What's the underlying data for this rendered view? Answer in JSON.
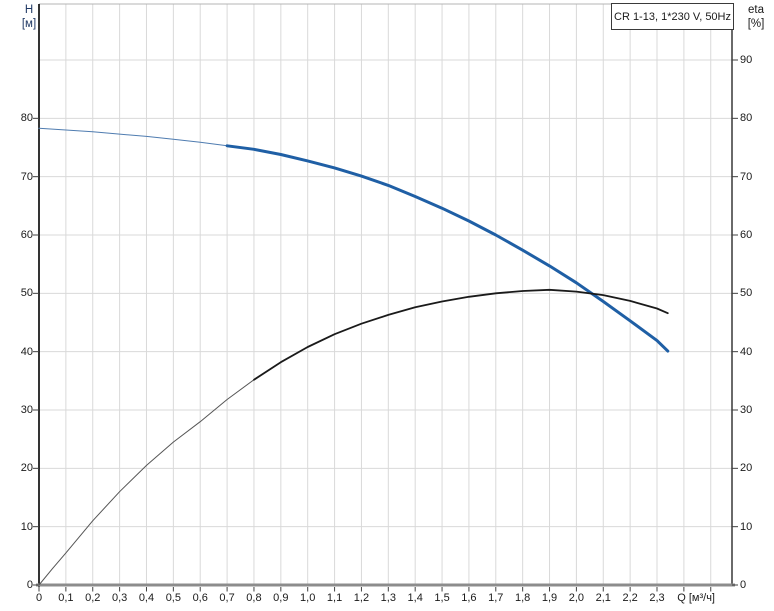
{
  "chart_data": {
    "type": "line",
    "title": "CR 1-13, 1*230 V, 50Hz",
    "grid": true,
    "grid_color": "#d9d9d9",
    "x_axis": {
      "label": "Q [м³/ч]",
      "min": 0,
      "max": 2.58,
      "grid_step": 0.1,
      "grid_max": 2.5,
      "tick_values": [
        0,
        0.1,
        0.2,
        0.3,
        0.4,
        0.5,
        0.6,
        0.7,
        0.8,
        0.9,
        1.0,
        1.1,
        1.2,
        1.3,
        1.4,
        1.5,
        1.6,
        1.7,
        1.8,
        1.9,
        2.0,
        2.1,
        2.2,
        2.3
      ],
      "tick_labels": [
        "0",
        "0,1",
        "0,2",
        "0,3",
        "0,4",
        "0,5",
        "0,6",
        "0,7",
        "0,8",
        "0,9",
        "1,0",
        "1,1",
        "1,2",
        "1,3",
        "1,4",
        "1,5",
        "1,6",
        "1,7",
        "1,8",
        "1,9",
        "2,0",
        "2,1",
        "2,2",
        "2,3"
      ]
    },
    "left_axis": {
      "label_line1": "H",
      "label_line2": "[м]",
      "min": 0,
      "max": 99.6,
      "tick_values": [
        0,
        10,
        20,
        30,
        40,
        50,
        60,
        70,
        80
      ]
    },
    "right_axis": {
      "label_line1": "eta",
      "label_line2": "[%]",
      "min": 0,
      "max": 99.6,
      "tick_values": [
        0,
        10,
        20,
        30,
        40,
        50,
        60,
        70,
        80,
        90
      ]
    },
    "series": [
      {
        "name": "head-curve",
        "axis": "left",
        "color": "#1f5fa5",
        "thin_color": "#4f7cb0",
        "thin_width": 1,
        "thick_width": 3,
        "thick_from": 0.7,
        "points": [
          [
            0,
            78.3
          ],
          [
            0.1,
            78.0
          ],
          [
            0.2,
            77.7
          ],
          [
            0.3,
            77.3
          ],
          [
            0.4,
            76.9
          ],
          [
            0.5,
            76.4
          ],
          [
            0.6,
            75.9
          ],
          [
            0.7,
            75.3
          ],
          [
            0.8,
            74.7
          ],
          [
            0.9,
            73.8
          ],
          [
            1.0,
            72.7
          ],
          [
            1.1,
            71.5
          ],
          [
            1.2,
            70.1
          ],
          [
            1.3,
            68.5
          ],
          [
            1.4,
            66.6
          ],
          [
            1.5,
            64.6
          ],
          [
            1.6,
            62.4
          ],
          [
            1.7,
            60.0
          ],
          [
            1.8,
            57.4
          ],
          [
            1.9,
            54.7
          ],
          [
            2.0,
            51.8
          ],
          [
            2.1,
            48.6
          ],
          [
            2.2,
            45.3
          ],
          [
            2.3,
            41.9
          ],
          [
            2.34,
            40.1
          ]
        ]
      },
      {
        "name": "efficiency-curve",
        "axis": "right",
        "color": "#1a1a1a",
        "thin_color": "#555555",
        "thin_width": 1,
        "thick_width": 1.8,
        "thick_from": 0.8,
        "points": [
          [
            0,
            0
          ],
          [
            0.05,
            2.8
          ],
          [
            0.1,
            5.5
          ],
          [
            0.2,
            11.0
          ],
          [
            0.3,
            16.0
          ],
          [
            0.4,
            20.5
          ],
          [
            0.5,
            24.5
          ],
          [
            0.6,
            28.0
          ],
          [
            0.7,
            31.8
          ],
          [
            0.8,
            35.2
          ],
          [
            0.9,
            38.2
          ],
          [
            1.0,
            40.8
          ],
          [
            1.1,
            43.0
          ],
          [
            1.2,
            44.8
          ],
          [
            1.3,
            46.3
          ],
          [
            1.4,
            47.6
          ],
          [
            1.5,
            48.6
          ],
          [
            1.6,
            49.4
          ],
          [
            1.7,
            50.0
          ],
          [
            1.8,
            50.4
          ],
          [
            1.9,
            50.6
          ],
          [
            2.0,
            50.3
          ],
          [
            2.1,
            49.7
          ],
          [
            2.2,
            48.7
          ],
          [
            2.3,
            47.4
          ],
          [
            2.34,
            46.6
          ]
        ]
      }
    ]
  }
}
